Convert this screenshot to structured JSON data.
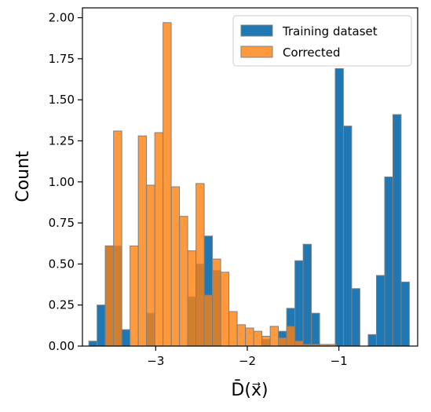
{
  "chart_data": {
    "type": "bar",
    "xlabel": "D̄(x⃗)",
    "ylabel": "Count",
    "xlim": [
      -3.8,
      -0.14
    ],
    "ylim": [
      0,
      2.06
    ],
    "bin_width": 0.0893,
    "xticks": [
      -3,
      -2,
      -1
    ],
    "xtick_labels": [
      "−3",
      "−2",
      "−1"
    ],
    "yticks": [
      0,
      0.25,
      0.5,
      0.75,
      1.0,
      1.25,
      1.5,
      1.75,
      2.0
    ],
    "ytick_labels": [
      "0.00",
      "0.25",
      "0.50",
      "0.75",
      "1.00",
      "1.25",
      "1.50",
      "1.75",
      "2.00"
    ],
    "legend_position": "top-right",
    "series": [
      {
        "name": "Training dataset",
        "color": "#1f77b4",
        "bins": [
          [
            -3.73,
            0.03
          ],
          [
            -3.64,
            0.25
          ],
          [
            -3.55,
            0.61
          ],
          [
            -3.46,
            0.61
          ],
          [
            -3.37,
            0.1
          ],
          [
            -3.1,
            0.2
          ],
          [
            -2.65,
            0.3
          ],
          [
            -2.56,
            0.5
          ],
          [
            -2.47,
            0.67
          ],
          [
            -2.38,
            0.46
          ],
          [
            -1.84,
            0.04
          ],
          [
            -1.66,
            0.09
          ],
          [
            -1.57,
            0.23
          ],
          [
            -1.48,
            0.52
          ],
          [
            -1.39,
            0.62
          ],
          [
            -1.3,
            0.2
          ],
          [
            -1.04,
            1.69
          ],
          [
            -0.95,
            1.34
          ],
          [
            -0.86,
            0.35
          ],
          [
            -0.68,
            0.07
          ],
          [
            -0.59,
            0.43
          ],
          [
            -0.5,
            1.03
          ],
          [
            -0.41,
            1.41
          ],
          [
            -0.32,
            0.39
          ]
        ]
      },
      {
        "name": "Corrected",
        "color": "#ff7f0e",
        "bins": [
          [
            -3.55,
            0.61
          ],
          [
            -3.46,
            1.31
          ],
          [
            -3.28,
            0.61
          ],
          [
            -3.19,
            1.28
          ],
          [
            -3.1,
            0.98
          ],
          [
            -3.01,
            1.3
          ],
          [
            -2.92,
            1.97
          ],
          [
            -2.83,
            0.97
          ],
          [
            -2.74,
            0.79
          ],
          [
            -2.65,
            0.58
          ],
          [
            -2.56,
            0.99
          ],
          [
            -2.47,
            0.31
          ],
          [
            -2.38,
            0.53
          ],
          [
            -2.29,
            0.45
          ],
          [
            -2.2,
            0.21
          ],
          [
            -2.11,
            0.13
          ],
          [
            -2.02,
            0.11
          ],
          [
            -1.93,
            0.09
          ],
          [
            -1.84,
            0.06
          ],
          [
            -1.75,
            0.12
          ],
          [
            -1.66,
            0.05
          ],
          [
            -1.57,
            0.12
          ],
          [
            -1.48,
            0.03
          ],
          [
            -1.39,
            0.01
          ],
          [
            -1.3,
            0.01
          ],
          [
            -1.21,
            0.01
          ],
          [
            -1.12,
            0.01
          ]
        ]
      }
    ]
  }
}
